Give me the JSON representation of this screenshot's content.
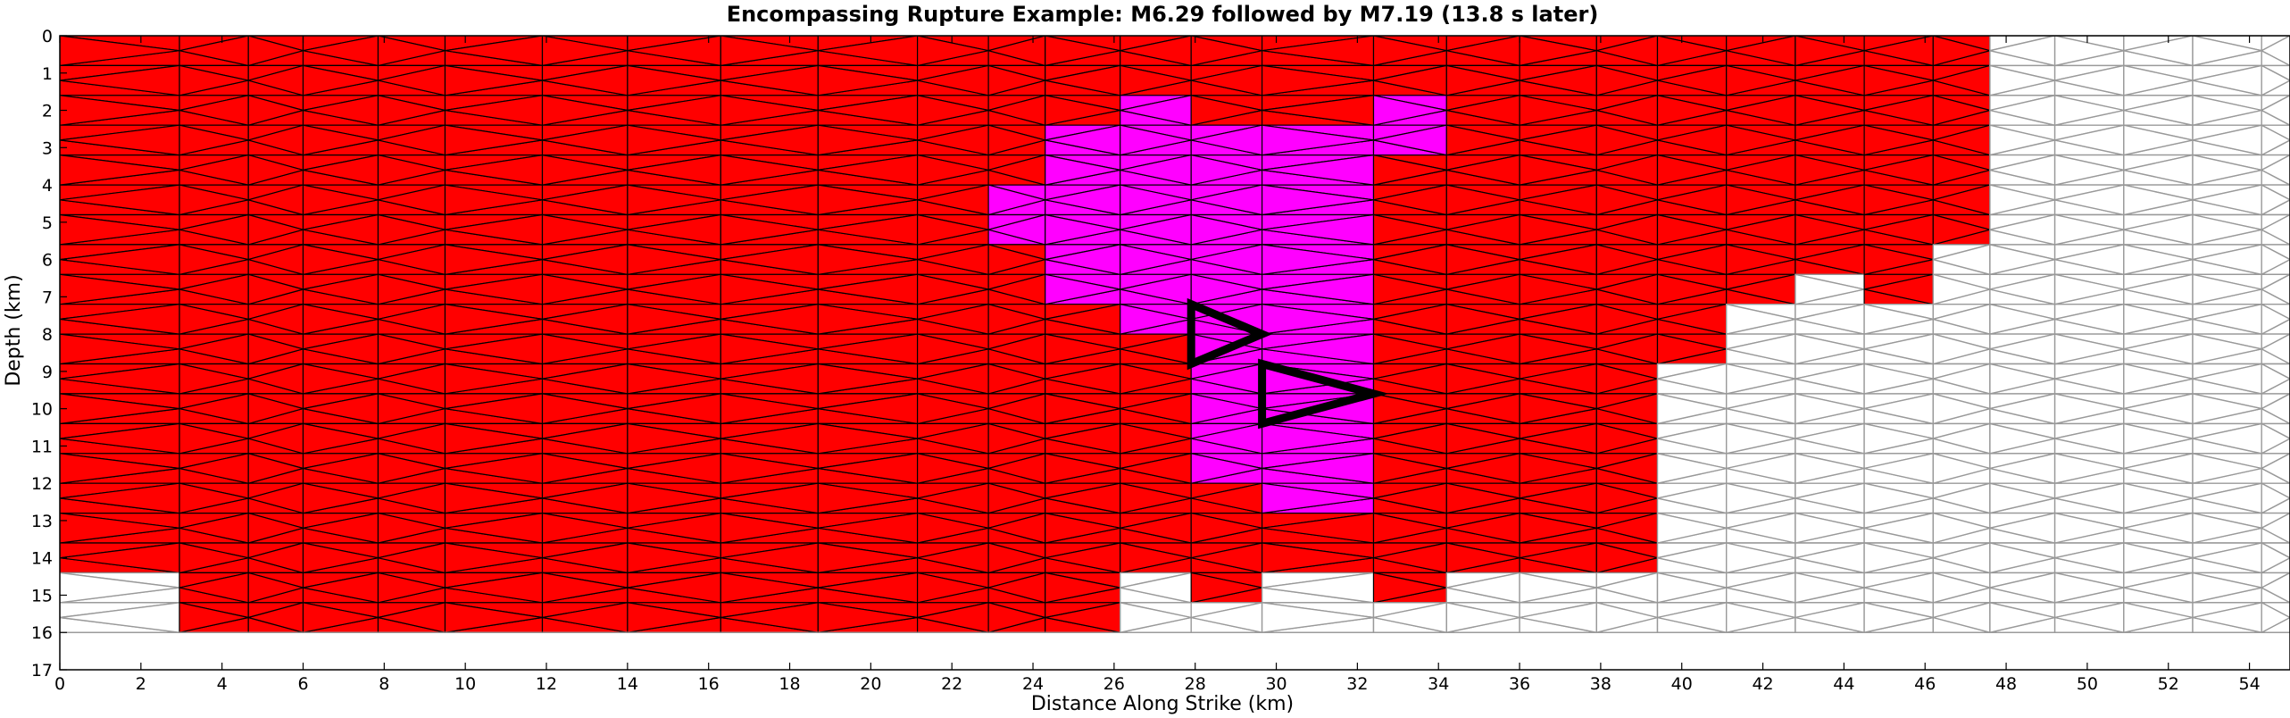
{
  "chart_data": {
    "type": "heatmap",
    "title": "Encompassing Rupture Example: M6.29 followed by M7.19 (13.8 s later)",
    "xlabel": "Distance Along Strike (km)",
    "ylabel": "Depth (km)",
    "xlim": [
      0,
      55
    ],
    "ylim": [
      0,
      17
    ],
    "y_inverted": true,
    "grid": false,
    "x_ticks": [
      0,
      2,
      4,
      6,
      8,
      10,
      12,
      14,
      16,
      18,
      20,
      22,
      24,
      26,
      28,
      30,
      32,
      34,
      36,
      38,
      40,
      42,
      44,
      46,
      48,
      50,
      52,
      54
    ],
    "y_ticks": [
      0,
      1,
      2,
      3,
      4,
      5,
      6,
      7,
      8,
      9,
      10,
      11,
      12,
      13,
      14,
      15,
      16,
      17
    ],
    "mesh": {
      "x_nodes": [
        0,
        2.95,
        4.65,
        6.0,
        7.85,
        9.5,
        11.9,
        14.0,
        16.3,
        18.7,
        21.15,
        22.9,
        24.3,
        26.15,
        27.9,
        29.65,
        32.4,
        34.2,
        36.0,
        37.9,
        39.4,
        41.1,
        42.8,
        44.5,
        46.2,
        47.6,
        49.2,
        50.9,
        52.6,
        54.3,
        55
      ],
      "depth_bottom": 16,
      "row_height": 0.8
    },
    "rupture_regions": [
      {
        "name": "M7.19",
        "color": "#ff0000",
        "columns": [
          {
            "from_km": 0,
            "to_km": 2.95,
            "depth_top": 0,
            "depth_bottom": 14.4
          },
          {
            "from_km": 2.95,
            "to_km": 24.3,
            "depth_top": 0,
            "depth_bottom": 16
          },
          {
            "from_km": 24.3,
            "to_km": 26.15,
            "depth_top": 0,
            "depth_bottom": 16
          },
          {
            "from_km": 26.15,
            "to_km": 27.9,
            "depth_top": 0,
            "depth_bottom": 14.4
          },
          {
            "from_km": 27.9,
            "to_km": 29.65,
            "depth_top": 0,
            "depth_bottom": 15.2
          },
          {
            "from_km": 29.65,
            "to_km": 32.4,
            "depth_top": 0,
            "depth_bottom": 14.4
          },
          {
            "from_km": 32.4,
            "to_km": 34.2,
            "depth_top": 0,
            "depth_bottom": 15.2
          },
          {
            "from_km": 34.2,
            "to_km": 37.9,
            "depth_top": 0,
            "depth_bottom": 14.4
          },
          {
            "from_km": 37.9,
            "to_km": 39.4,
            "depth_top": 0,
            "depth_bottom": 14.4
          },
          {
            "from_km": 39.4,
            "to_km": 41.1,
            "depth_top": 0,
            "depth_bottom": 8.8
          },
          {
            "from_km": 41.1,
            "to_km": 42.8,
            "depth_top": 0,
            "depth_bottom": 7.2
          },
          {
            "from_km": 42.8,
            "to_km": 44.5,
            "depth_top": 0,
            "depth_bottom": 6.4
          },
          {
            "from_km": 44.5,
            "to_km": 46.2,
            "depth_top": 0,
            "depth_bottom": 7.2
          },
          {
            "from_km": 46.2,
            "to_km": 47.6,
            "depth_top": 0,
            "depth_bottom": 5.6
          }
        ]
      },
      {
        "name": "M6.29",
        "color": "#ff00ff",
        "columns": [
          {
            "from_km": 22.9,
            "to_km": 24.3,
            "depth_top": 4.0,
            "depth_bottom": 5.6
          },
          {
            "from_km": 24.3,
            "to_km": 26.15,
            "depth_top": 2.4,
            "depth_bottom": 7.2
          },
          {
            "from_km": 26.15,
            "to_km": 27.9,
            "depth_top": 1.6,
            "depth_bottom": 8.0
          },
          {
            "from_km": 27.9,
            "to_km": 29.65,
            "depth_top": 2.4,
            "depth_bottom": 12.0
          },
          {
            "from_km": 29.65,
            "to_km": 32.4,
            "depth_top": 2.4,
            "depth_bottom": 12.8
          },
          {
            "from_km": 32.4,
            "to_km": 34.2,
            "depth_top": 1.6,
            "depth_bottom": 3.2
          }
        ]
      }
    ],
    "hypocenters": [
      {
        "name": "M6.29",
        "points": [
          [
            27.9,
            7.2
          ],
          [
            29.65,
            8.0
          ],
          [
            27.9,
            8.8
          ]
        ]
      },
      {
        "name": "M7.19",
        "points": [
          [
            29.65,
            8.8
          ],
          [
            32.4,
            9.6
          ],
          [
            29.65,
            10.4
          ]
        ]
      }
    ],
    "colors": {
      "rupture_large": "#ff0000",
      "rupture_small": "#ff00ff",
      "mesh_unruptured": "#999999",
      "mesh_ruptured": "#000000",
      "hypocenter": "#000000"
    }
  }
}
